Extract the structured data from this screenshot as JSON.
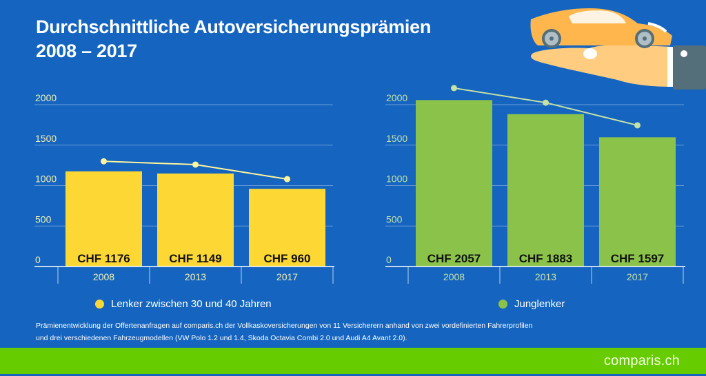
{
  "title": {
    "line1": "Durchschnittliche Autoversicherungsprämien",
    "line2": "2008 – 2017"
  },
  "illustration": {
    "icons": [
      "car-icon",
      "hand-icon"
    ]
  },
  "colors": {
    "background": "#1565c0",
    "series1_bar": "#fdd835",
    "series1_line": "#fff59d",
    "series1_tick": "#f5f0b0",
    "series2_bar": "#8bc34a",
    "series2_line": "#c5e1a5",
    "series2_tick": "#c5e1a5",
    "footer": "#66cc00"
  },
  "chart_data": [
    {
      "type": "bar",
      "title": "",
      "legend": "Lenker zwischen 30 und 40 Jahren",
      "legend_position": "bottom",
      "categories": [
        "2008",
        "2013",
        "2017"
      ],
      "series": [
        {
          "name": "Lenker zwischen 30 und 40 Jahren",
          "kind": "bar",
          "values": [
            1176,
            1149,
            960
          ]
        },
        {
          "name": "Trend",
          "kind": "line",
          "values": [
            1300,
            1260,
            1080
          ]
        }
      ],
      "data_labels": [
        "CHF 1176",
        "CHF 1149",
        "CHF 960"
      ],
      "yticks": [
        "0",
        "500",
        "1000",
        "1500",
        "2000"
      ],
      "ylim": [
        0,
        2000
      ],
      "grid": true,
      "xlabel": "",
      "ylabel": ""
    },
    {
      "type": "bar",
      "title": "",
      "legend": "Junglenker",
      "legend_position": "bottom",
      "categories": [
        "2008",
        "2013",
        "2017"
      ],
      "series": [
        {
          "name": "Junglenker",
          "kind": "bar",
          "values": [
            2057,
            1883,
            1597
          ]
        },
        {
          "name": "Trend",
          "kind": "line",
          "values": [
            2205,
            2025,
            1745
          ]
        }
      ],
      "data_labels": [
        "CHF 2057",
        "CHF 1883",
        "CHF 1597"
      ],
      "yticks": [
        "0",
        "500",
        "1000",
        "1500",
        "2000"
      ],
      "ylim": [
        0,
        2000
      ],
      "grid": true,
      "xlabel": "",
      "ylabel": ""
    }
  ],
  "footnote": {
    "line1": "Prämienentwicklung der Offertenanfragen auf comparis.ch der Vollkaskoversicherungen von 11 Versicherern anhand von zwei vordefinierten Fahrerprofilen",
    "line2": "und drei verschiedenen Fahrzeugmodellen (VW Polo 1.2 und 1.4, Skoda Octavia Combi 2.0 und Audi A4 Avant 2.0)."
  },
  "footer": {
    "brand": "comparis.ch"
  }
}
